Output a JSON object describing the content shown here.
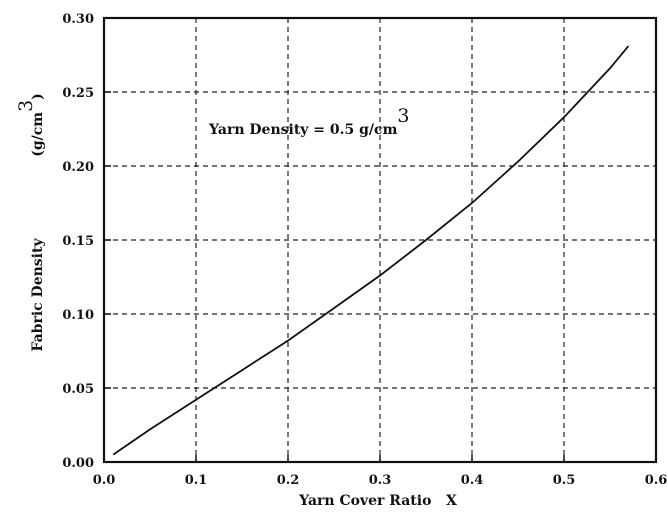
{
  "chart_data": {
    "type": "line",
    "xlabel": "Yarn Cover Ratio   X",
    "ylabel": "Fabric Density",
    "ylabel_unit": "(g/cm",
    "ylabel_unit_sup": "3",
    "ylabel_unit_close": ")",
    "annotation": "Yarn Density = 0.5  g/cm",
    "annotation_sup": "3",
    "xlim": [
      0.0,
      0.6
    ],
    "ylim": [
      0.0,
      0.3
    ],
    "x_ticks": [
      "0.0",
      "0.1",
      "0.2",
      "0.3",
      "0.4",
      "0.5",
      "0.6"
    ],
    "y_ticks": [
      "0.00",
      "0.05",
      "0.10",
      "0.15",
      "0.20",
      "0.25",
      "0.30"
    ],
    "grid": true,
    "series": [
      {
        "x": [
          0.01,
          0.05,
          0.1,
          0.15,
          0.2,
          0.25,
          0.3,
          0.35,
          0.4,
          0.45,
          0.5,
          0.55,
          0.57
        ],
        "y": [
          0.005,
          0.022,
          0.042,
          0.062,
          0.082,
          0.104,
          0.126,
          0.15,
          0.175,
          0.203,
          0.233,
          0.266,
          0.281
        ]
      }
    ]
  }
}
